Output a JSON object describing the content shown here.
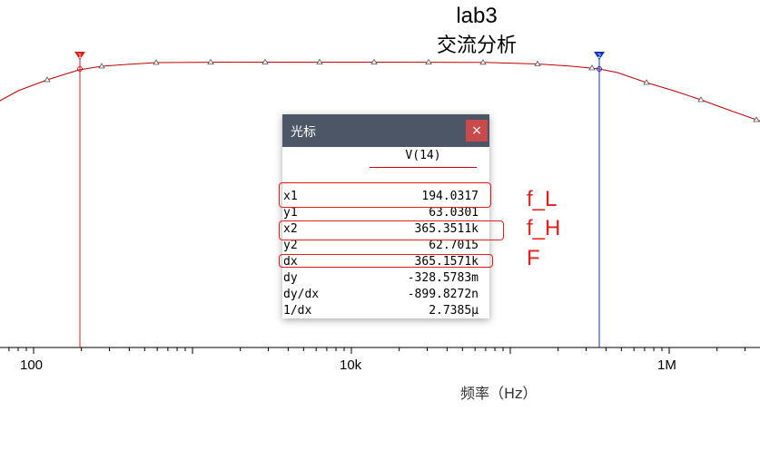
{
  "title": {
    "main": "lab3",
    "sub": "交流分析"
  },
  "x_axis": {
    "ticks": [
      "100",
      "10k",
      "1M"
    ],
    "label": "频率（Hz）"
  },
  "trace": {
    "color": "#c00000",
    "points": [
      [
        -20,
        122
      ],
      [
        0,
        111
      ],
      [
        20,
        100
      ],
      [
        52,
        88
      ],
      [
        87,
        77
      ],
      [
        112,
        73
      ],
      [
        140,
        71
      ],
      [
        172,
        69
      ],
      [
        232,
        68.6
      ],
      [
        292,
        68.5
      ],
      [
        352,
        68.5
      ],
      [
        412,
        68.5
      ],
      [
        472,
        68.6
      ],
      [
        532,
        68.8
      ],
      [
        592,
        70.5
      ],
      [
        630,
        73
      ],
      [
        660,
        76
      ],
      [
        680,
        80
      ],
      [
        712,
        91
      ],
      [
        742,
        100
      ],
      [
        772,
        110
      ],
      [
        802,
        121
      ],
      [
        833,
        132
      ],
      [
        860,
        142
      ]
    ],
    "markers": [
      [
        52,
        88
      ],
      [
        112,
        73
      ],
      [
        172,
        69
      ],
      [
        232,
        68.6
      ],
      [
        292,
        68.5
      ],
      [
        352,
        68.5
      ],
      [
        412,
        68.5
      ],
      [
        472,
        68.6
      ],
      [
        532,
        68.8
      ],
      [
        592,
        70.5
      ],
      [
        652,
        75
      ],
      [
        712,
        91
      ],
      [
        772,
        110
      ],
      [
        833,
        132
      ]
    ]
  },
  "cursor1": {
    "x": 88,
    "color": "#e0201c",
    "label": "1"
  },
  "cursor2": {
    "x": 660,
    "color": "#1030c0",
    "label": "2"
  },
  "panel": {
    "title": "光标",
    "close_label": "×",
    "column": "V(14)",
    "rows": [
      {
        "label": "x1",
        "value": "194.0317"
      },
      {
        "label": "y1",
        "value": "63.0301"
      },
      {
        "label": "x2",
        "value": "365.3511k"
      },
      {
        "label": "y2",
        "value": "62.7015"
      },
      {
        "label": "dx",
        "value": "365.1571k"
      },
      {
        "label": "dy",
        "value": "-328.5783m"
      },
      {
        "label": "dy/dx",
        "value": "-899.8272n"
      },
      {
        "label": "1/dx",
        "value": "2.7385µ"
      }
    ]
  },
  "annotations": {
    "f_l": "f_L",
    "f_h": "f_H",
    "f": "F",
    "color": "#e0201c"
  }
}
